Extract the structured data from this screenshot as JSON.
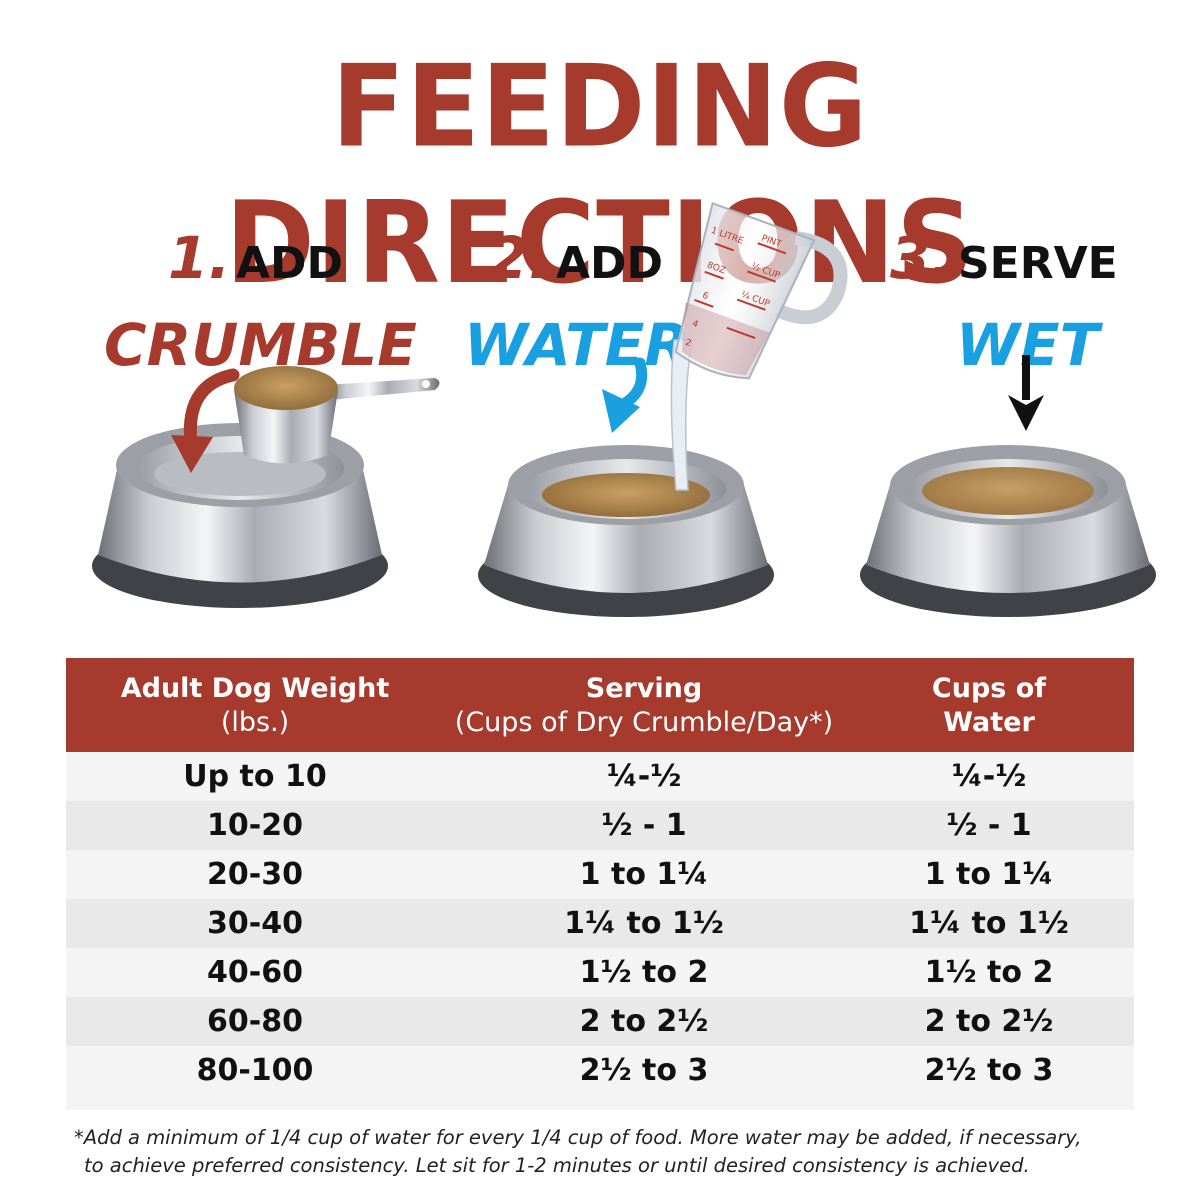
{
  "title": "FEEDING DIRECTIONS",
  "steps": [
    {
      "number": "1.",
      "verb": "ADD",
      "object": "CRUMBLE"
    },
    {
      "number": "2.",
      "verb": "ADD",
      "object": "WATER"
    },
    {
      "number": "3.",
      "verb": "SERVE",
      "object": "WET"
    }
  ],
  "cup_markings": [
    "1 LITRE",
    "8OZ",
    "6",
    "4",
    "2",
    "PINT",
    "½ CUP",
    "¼ CUP"
  ],
  "table": {
    "headers": [
      {
        "main": "Adult Dog Weight",
        "sub": "(lbs.)"
      },
      {
        "main": "Serving",
        "sub": "(Cups of Dry Crumble/Day*)"
      },
      {
        "main": "Cups of",
        "sub": "Water"
      }
    ],
    "rows": [
      [
        "Up to 10",
        "¼-½",
        "¼-½"
      ],
      [
        "10-20",
        "½ - 1",
        "½ - 1"
      ],
      [
        "20-30",
        "1 to 1¼",
        "1 to 1¼"
      ],
      [
        "30-40",
        "1¼ to 1½",
        "1¼ to 1½"
      ],
      [
        "40-60",
        "1½ to 2",
        "1½ to 2"
      ],
      [
        "60-80",
        "2 to 2½",
        "2 to 2½"
      ],
      [
        "80-100",
        "2½ to 3",
        "2½ to 3"
      ]
    ]
  },
  "footnote": {
    "line1": "*Add a minimum of 1/4 cup of water for every 1/4 cup of food. More water may be added, if necessary,",
    "line2": "to achieve preferred consistency. Let sit for 1-2 minutes or until desired consistency is achieved."
  },
  "colors": {
    "brand_red": "#a63a2c",
    "accent_blue": "#1a9fe0",
    "text": "#111111"
  }
}
